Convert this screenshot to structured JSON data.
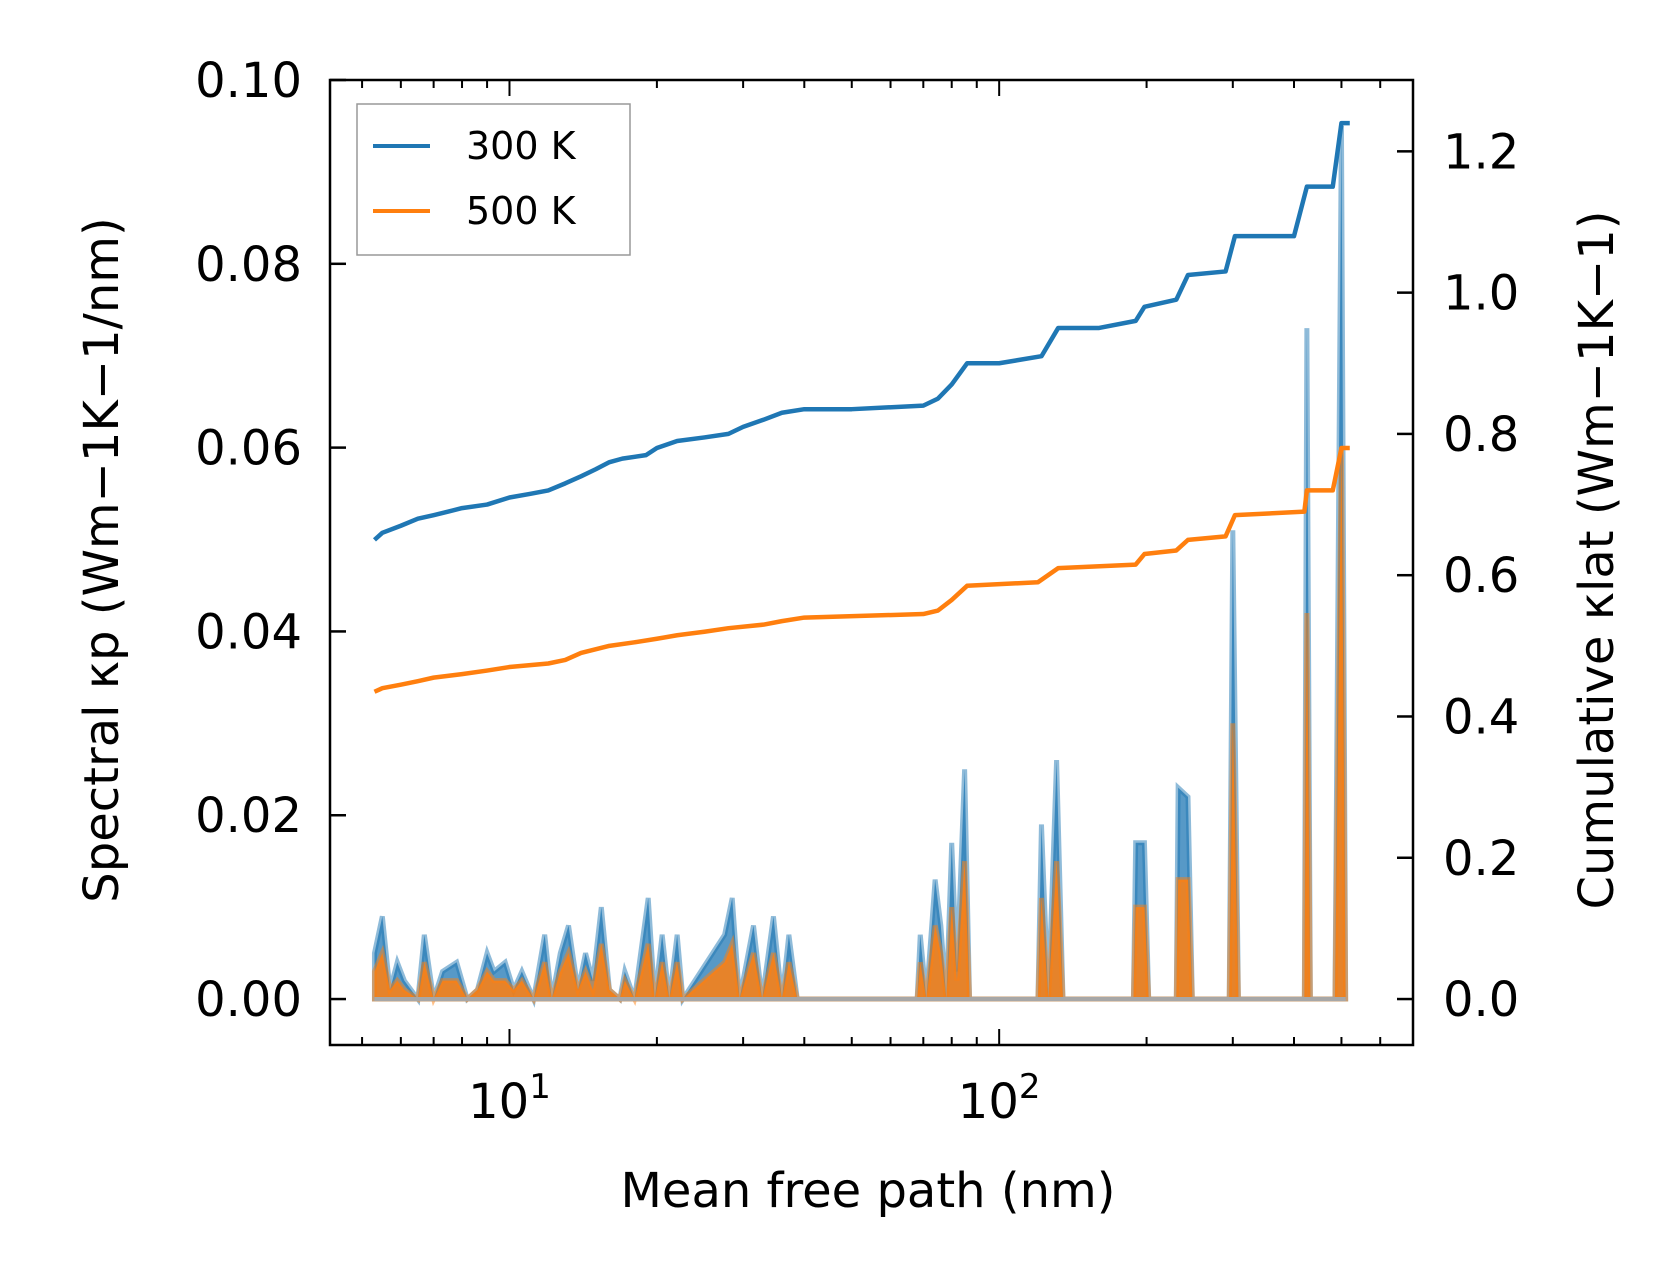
{
  "chart_data": {
    "type": "line",
    "xscale": "log",
    "xlabel": "Mean free path (nm)",
    "ylabel_left": "Spectral κp (Wm−1K−1/nm)",
    "ylabel_right": "Cumulative κlat (Wm−1K−1)",
    "xlim": [
      4.3,
      700
    ],
    "ylim_left": [
      -0.005,
      0.1
    ],
    "ylim_right": [
      -0.06505,
      1.301
    ],
    "x_major_ticks": [
      10,
      100
    ],
    "x_major_tick_labels": [
      {
        "base": "10",
        "exp": "1"
      },
      {
        "base": "10",
        "exp": "2"
      }
    ],
    "y_left_ticks": [
      0.0,
      0.02,
      0.04,
      0.06,
      0.08,
      0.1
    ],
    "y_left_tick_labels": [
      "0.00",
      "0.02",
      "0.04",
      "0.06",
      "0.08",
      "0.10"
    ],
    "y_right_ticks": [
      0.0,
      0.2,
      0.4,
      0.6,
      0.8,
      1.0,
      1.2
    ],
    "y_right_tick_labels": [
      "0.0",
      "0.2",
      "0.4",
      "0.6",
      "0.8",
      "1.0",
      "1.2"
    ],
    "legend": {
      "location": "upper left",
      "entries": [
        "300 K",
        "500 K"
      ]
    },
    "colors": {
      "300 K": "#1f77b4",
      "500 K": "#ff7f0e",
      "fill_300": "#1f77b4",
      "fill_500": "#ff7f0e"
    },
    "cumulative_series": [
      {
        "name": "300 K",
        "points": [
          [
            5.3,
            0.65
          ],
          [
            5.5,
            0.66
          ],
          [
            6.0,
            0.67
          ],
          [
            6.5,
            0.68
          ],
          [
            7.0,
            0.685
          ],
          [
            7.5,
            0.69
          ],
          [
            8.0,
            0.695
          ],
          [
            9.0,
            0.7
          ],
          [
            10.0,
            0.71
          ],
          [
            11.0,
            0.715
          ],
          [
            12.0,
            0.72
          ],
          [
            13.0,
            0.73
          ],
          [
            14.0,
            0.74
          ],
          [
            15.0,
            0.75
          ],
          [
            16.0,
            0.76
          ],
          [
            17.0,
            0.765
          ],
          [
            19.0,
            0.77
          ],
          [
            20.0,
            0.78
          ],
          [
            22.0,
            0.79
          ],
          [
            25.0,
            0.795
          ],
          [
            28.0,
            0.8
          ],
          [
            30.0,
            0.81
          ],
          [
            33.0,
            0.82
          ],
          [
            36.0,
            0.83
          ],
          [
            40.0,
            0.835
          ],
          [
            50.0,
            0.835
          ],
          [
            70.0,
            0.84
          ],
          [
            75.0,
            0.85
          ],
          [
            80.0,
            0.87
          ],
          [
            86.0,
            0.9
          ],
          [
            100.0,
            0.9
          ],
          [
            122.0,
            0.91
          ],
          [
            132.0,
            0.95
          ],
          [
            160.0,
            0.95
          ],
          [
            190.0,
            0.96
          ],
          [
            198.0,
            0.98
          ],
          [
            230.0,
            0.99
          ],
          [
            243.0,
            1.025
          ],
          [
            290.0,
            1.03
          ],
          [
            303.0,
            1.08
          ],
          [
            400.0,
            1.08
          ],
          [
            425.0,
            1.15
          ],
          [
            480.0,
            1.15
          ],
          [
            500.0,
            1.24
          ],
          [
            520.0,
            1.24
          ]
        ]
      },
      {
        "name": "500 K",
        "points": [
          [
            5.3,
            0.435
          ],
          [
            5.5,
            0.44
          ],
          [
            6.0,
            0.445
          ],
          [
            6.5,
            0.45
          ],
          [
            7.0,
            0.455
          ],
          [
            8.0,
            0.46
          ],
          [
            9.0,
            0.465
          ],
          [
            10.0,
            0.47
          ],
          [
            12.0,
            0.475
          ],
          [
            13.0,
            0.48
          ],
          [
            14.0,
            0.49
          ],
          [
            16.0,
            0.5
          ],
          [
            18.0,
            0.505
          ],
          [
            20.0,
            0.51
          ],
          [
            22.0,
            0.515
          ],
          [
            25.0,
            0.52
          ],
          [
            28.0,
            0.525
          ],
          [
            33.0,
            0.53
          ],
          [
            36.0,
            0.535
          ],
          [
            40.0,
            0.54
          ],
          [
            70.0,
            0.545
          ],
          [
            75.0,
            0.55
          ],
          [
            80.0,
            0.565
          ],
          [
            86.0,
            0.585
          ],
          [
            120.0,
            0.59
          ],
          [
            132.0,
            0.61
          ],
          [
            190.0,
            0.615
          ],
          [
            198.0,
            0.63
          ],
          [
            230.0,
            0.635
          ],
          [
            243.0,
            0.65
          ],
          [
            290.0,
            0.655
          ],
          [
            303.0,
            0.685
          ],
          [
            420.0,
            0.69
          ],
          [
            425.0,
            0.72
          ],
          [
            480.0,
            0.72
          ],
          [
            500.0,
            0.78
          ],
          [
            520.0,
            0.78
          ]
        ]
      }
    ],
    "spectral_series": [
      {
        "name": "300 K",
        "points": [
          [
            5.3,
            0.005
          ],
          [
            5.5,
            0.009
          ],
          [
            5.7,
            0.001
          ],
          [
            5.9,
            0.004
          ],
          [
            6.1,
            0.002
          ],
          [
            6.5,
            0.0
          ],
          [
            6.7,
            0.007
          ],
          [
            7.0,
            0.0
          ],
          [
            7.3,
            0.003
          ],
          [
            7.8,
            0.004
          ],
          [
            8.2,
            0.0
          ],
          [
            8.6,
            0.001
          ],
          [
            9.0,
            0.005
          ],
          [
            9.3,
            0.003
          ],
          [
            9.8,
            0.004
          ],
          [
            10.2,
            0.001
          ],
          [
            10.6,
            0.003
          ],
          [
            11.2,
            0.0
          ],
          [
            11.8,
            0.007
          ],
          [
            12.2,
            0.0
          ],
          [
            12.7,
            0.005
          ],
          [
            13.2,
            0.008
          ],
          [
            13.8,
            0.001
          ],
          [
            14.3,
            0.005
          ],
          [
            14.8,
            0.002
          ],
          [
            15.4,
            0.01
          ],
          [
            16.0,
            0.001
          ],
          [
            16.8,
            0.0
          ],
          [
            17.2,
            0.003
          ],
          [
            18.0,
            0.0
          ],
          [
            19.2,
            0.011
          ],
          [
            19.8,
            0.0
          ],
          [
            20.5,
            0.007
          ],
          [
            21.2,
            0.0
          ],
          [
            22.0,
            0.007
          ],
          [
            22.6,
            0.0
          ],
          [
            27.5,
            0.007
          ],
          [
            28.5,
            0.011
          ],
          [
            29.5,
            0.0
          ],
          [
            31.5,
            0.008
          ],
          [
            32.8,
            0.0
          ],
          [
            34.6,
            0.009
          ],
          [
            36.0,
            0.0
          ],
          [
            37.2,
            0.007
          ],
          [
            38.7,
            0.0
          ],
          [
            68.0,
            0.0
          ],
          [
            69.0,
            0.007
          ],
          [
            71.0,
            0.0
          ],
          [
            74.0,
            0.013
          ],
          [
            76.0,
            0.008
          ],
          [
            78.0,
            0.0
          ],
          [
            80.0,
            0.017
          ],
          [
            82.0,
            0.003
          ],
          [
            85.0,
            0.025
          ],
          [
            87.0,
            0.0
          ],
          [
            120.0,
            0.0
          ],
          [
            122.0,
            0.019
          ],
          [
            126.0,
            0.0
          ],
          [
            131.0,
            0.026
          ],
          [
            135.0,
            0.0
          ],
          [
            188.0,
            0.0
          ],
          [
            190.0,
            0.017
          ],
          [
            198.0,
            0.017
          ],
          [
            202.0,
            0.0
          ],
          [
            230.0,
            0.0
          ],
          [
            232.0,
            0.023
          ],
          [
            243.0,
            0.022
          ],
          [
            248.0,
            0.0
          ],
          [
            295.0,
            0.0
          ],
          [
            300.0,
            0.051
          ],
          [
            308.0,
            0.0
          ],
          [
            420.0,
            0.0
          ],
          [
            425.0,
            0.073
          ],
          [
            432.0,
            0.0
          ],
          [
            485.0,
            0.0
          ],
          [
            500.0,
            0.095
          ],
          [
            510.0,
            0.0
          ]
        ]
      },
      {
        "name": "500 K",
        "points": [
          [
            5.3,
            0.003
          ],
          [
            5.5,
            0.005
          ],
          [
            5.7,
            0.001
          ],
          [
            5.9,
            0.002
          ],
          [
            6.1,
            0.001
          ],
          [
            6.5,
            0.0
          ],
          [
            6.7,
            0.004
          ],
          [
            7.0,
            0.0
          ],
          [
            7.3,
            0.002
          ],
          [
            7.8,
            0.002
          ],
          [
            8.2,
            0.0
          ],
          [
            8.6,
            0.001
          ],
          [
            9.0,
            0.003
          ],
          [
            9.3,
            0.002
          ],
          [
            9.8,
            0.002
          ],
          [
            10.2,
            0.001
          ],
          [
            10.6,
            0.002
          ],
          [
            11.2,
            0.0
          ],
          [
            11.8,
            0.004
          ],
          [
            12.2,
            0.0
          ],
          [
            12.7,
            0.003
          ],
          [
            13.2,
            0.005
          ],
          [
            13.8,
            0.001
          ],
          [
            14.3,
            0.003
          ],
          [
            14.8,
            0.001
          ],
          [
            15.4,
            0.006
          ],
          [
            16.0,
            0.001
          ],
          [
            16.8,
            0.0
          ],
          [
            17.2,
            0.002
          ],
          [
            18.0,
            0.0
          ],
          [
            19.2,
            0.006
          ],
          [
            19.8,
            0.0
          ],
          [
            20.5,
            0.004
          ],
          [
            21.2,
            0.0
          ],
          [
            22.0,
            0.004
          ],
          [
            22.6,
            0.0
          ],
          [
            27.5,
            0.004
          ],
          [
            28.5,
            0.006
          ],
          [
            29.5,
            0.0
          ],
          [
            31.5,
            0.005
          ],
          [
            32.8,
            0.0
          ],
          [
            34.6,
            0.005
          ],
          [
            36.0,
            0.0
          ],
          [
            37.2,
            0.004
          ],
          [
            38.7,
            0.0
          ],
          [
            68.0,
            0.0
          ],
          [
            69.0,
            0.004
          ],
          [
            71.0,
            0.0
          ],
          [
            74.0,
            0.008
          ],
          [
            76.0,
            0.005
          ],
          [
            78.0,
            0.0
          ],
          [
            80.0,
            0.01
          ],
          [
            82.0,
            0.002
          ],
          [
            85.0,
            0.015
          ],
          [
            87.0,
            0.0
          ],
          [
            120.0,
            0.0
          ],
          [
            122.0,
            0.011
          ],
          [
            126.0,
            0.0
          ],
          [
            131.0,
            0.015
          ],
          [
            135.0,
            0.0
          ],
          [
            188.0,
            0.0
          ],
          [
            190.0,
            0.01
          ],
          [
            198.0,
            0.01
          ],
          [
            202.0,
            0.0
          ],
          [
            230.0,
            0.0
          ],
          [
            232.0,
            0.013
          ],
          [
            243.0,
            0.013
          ],
          [
            248.0,
            0.0
          ],
          [
            295.0,
            0.0
          ],
          [
            300.0,
            0.03
          ],
          [
            308.0,
            0.0
          ],
          [
            420.0,
            0.0
          ],
          [
            425.0,
            0.042
          ],
          [
            432.0,
            0.0
          ],
          [
            485.0,
            0.0
          ],
          [
            500.0,
            0.06
          ],
          [
            510.0,
            0.0
          ]
        ]
      }
    ]
  }
}
